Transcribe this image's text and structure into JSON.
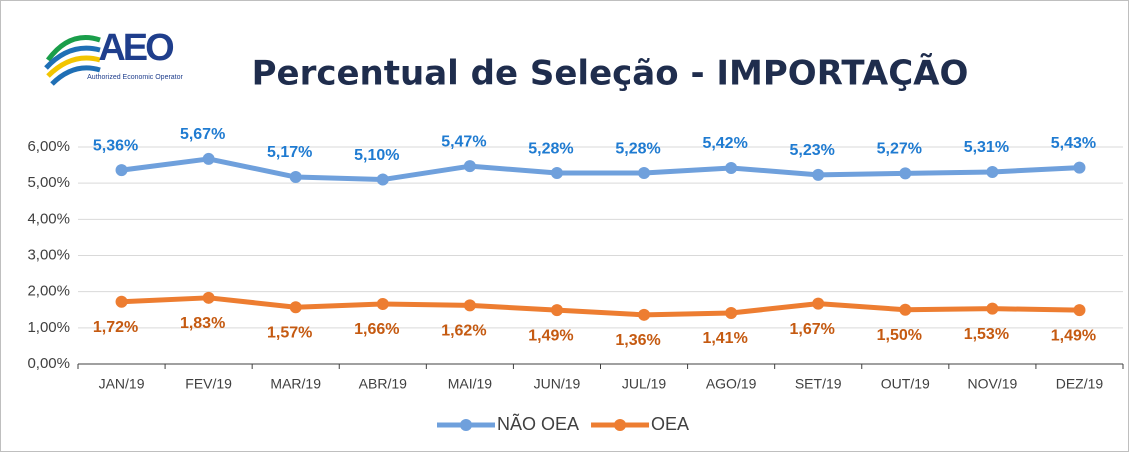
{
  "logo": {
    "text": "AEO",
    "caption": "Authorized Economic Operator"
  },
  "chart_data": {
    "type": "line",
    "title": "Percentual de Seleção - IMPORTAÇÃO",
    "categories": [
      "JAN/19",
      "FEV/19",
      "MAR/19",
      "ABR/19",
      "MAI/19",
      "JUN/19",
      "JUL/19",
      "AGO/19",
      "SET/19",
      "OUT/19",
      "NOV/19",
      "DEZ/19"
    ],
    "series": [
      {
        "name": "NÃO OEA",
        "color": "#6fa0dc",
        "label_color": "#1f7bd1",
        "label_position": "above",
        "values": [
          5.36,
          5.67,
          5.17,
          5.1,
          5.47,
          5.28,
          5.28,
          5.42,
          5.23,
          5.27,
          5.31,
          5.43
        ],
        "value_labels": [
          "5,36%",
          "5,67%",
          "5,17%",
          "5,10%",
          "5,47%",
          "5,28%",
          "5,28%",
          "5,42%",
          "5,23%",
          "5,27%",
          "5,31%",
          "5,43%"
        ]
      },
      {
        "name": "OEA",
        "color": "#ed7d31",
        "label_color": "#c55a11",
        "label_position": "below",
        "values": [
          1.72,
          1.83,
          1.57,
          1.66,
          1.62,
          1.49,
          1.36,
          1.41,
          1.67,
          1.5,
          1.53,
          1.49
        ],
        "value_labels": [
          "1,72%",
          "1,83%",
          "1,57%",
          "1,66%",
          "1,62%",
          "1,49%",
          "1,36%",
          "1,41%",
          "1,67%",
          "1,50%",
          "1,53%",
          "1,49%"
        ]
      }
    ],
    "ylim": [
      0,
      6
    ],
    "yticks": [
      {
        "value": 0,
        "label": "0,00%"
      },
      {
        "value": 1,
        "label": "1,00%"
      },
      {
        "value": 2,
        "label": "2,00%"
      },
      {
        "value": 3,
        "label": "3,00%"
      },
      {
        "value": 4,
        "label": "4,00%"
      },
      {
        "value": 5,
        "label": "5,00%"
      },
      {
        "value": 6,
        "label": "6,00%"
      }
    ],
    "grid": true,
    "legend": "bottom"
  }
}
